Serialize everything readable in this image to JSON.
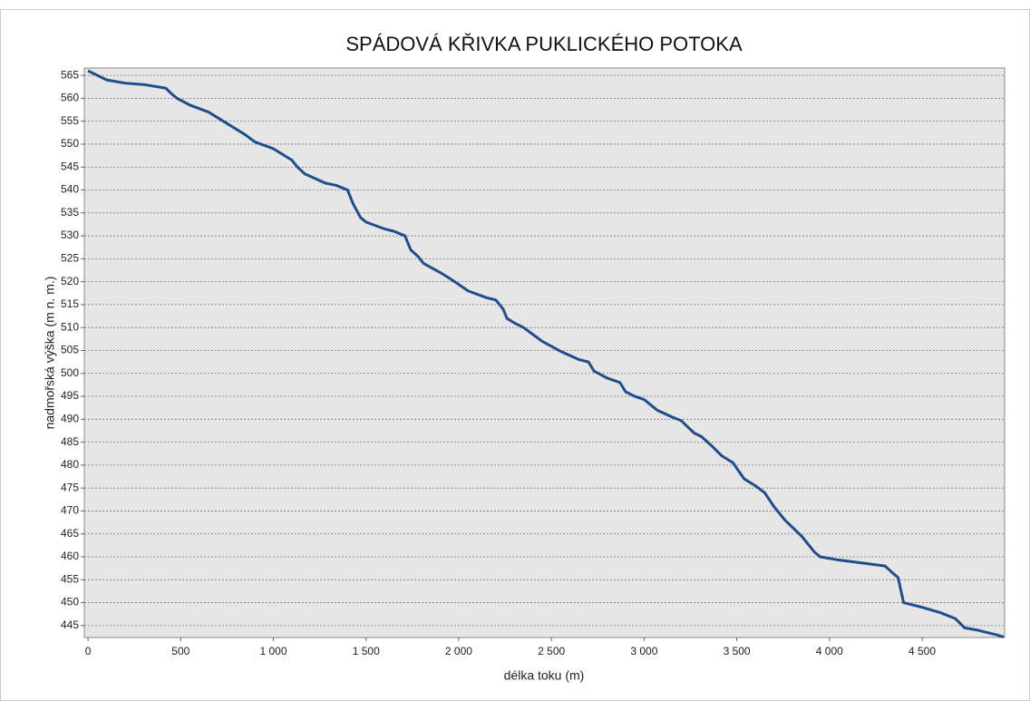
{
  "chart_data": {
    "type": "line",
    "title": "SPÁDOVÁ KŘIVKA PUKLICKÉHO POTOKA",
    "x_label": "délka toku (m)",
    "y_label": "nadmořská výška (m n. m.)",
    "xlim": [
      -20,
      4945
    ],
    "ylim": [
      442.4,
      566.6
    ],
    "xticks": [
      0,
      500,
      {
        "value": 1000,
        "label": "1 000"
      },
      {
        "value": 1500,
        "label": "1 500"
      },
      {
        "value": 2000,
        "label": "2 000"
      },
      {
        "value": 2500,
        "label": "2 500"
      },
      {
        "value": 3000,
        "label": "3 000"
      },
      {
        "value": 3500,
        "label": "3 500"
      },
      {
        "value": 4000,
        "label": "4 000"
      },
      {
        "value": 4500,
        "label": "4 500"
      }
    ],
    "yticks": [
      445,
      450,
      455,
      460,
      465,
      470,
      475,
      480,
      485,
      490,
      495,
      500,
      505,
      510,
      515,
      520,
      525,
      530,
      535,
      540,
      545,
      550,
      555,
      560,
      565
    ],
    "grid": true,
    "series": [
      {
        "color": "#1f4e8c",
        "x": [
          0,
          50,
          100,
          200,
          300,
          420,
          450,
          480,
          550,
          650,
          750,
          850,
          900,
          1000,
          1100,
          1130,
          1170,
          1280,
          1340,
          1400,
          1430,
          1470,
          1500,
          1600,
          1650,
          1710,
          1740,
          1780,
          1810,
          1900,
          1960,
          2050,
          2150,
          2200,
          2240,
          2260,
          2300,
          2350,
          2450,
          2550,
          2650,
          2700,
          2730,
          2800,
          2870,
          2900,
          2950,
          3000,
          3070,
          3150,
          3200,
          3270,
          3310,
          3370,
          3420,
          3480,
          3500,
          3540,
          3600,
          3650,
          3700,
          3760,
          3850,
          3920,
          3950,
          4050,
          4150,
          4300,
          4340,
          4370,
          4400,
          4500,
          4600,
          4680,
          4730,
          4800,
          4900,
          4940
        ],
        "values": [
          566,
          565,
          564,
          563.3,
          563,
          562.2,
          561,
          560,
          558.5,
          557,
          554.5,
          552,
          550.5,
          549,
          546.5,
          545,
          543.5,
          541.5,
          541,
          540,
          537,
          534,
          533,
          531.5,
          531,
          530,
          527,
          525.5,
          524,
          522,
          520.5,
          518,
          516.5,
          516,
          514,
          512,
          511,
          510,
          507,
          504.8,
          503,
          502.5,
          500.5,
          499,
          498,
          496,
          495,
          494.3,
          492,
          490.5,
          489.7,
          487,
          486.2,
          484,
          482,
          480.5,
          479.3,
          477,
          475.5,
          474,
          471,
          468,
          464.5,
          461,
          460,
          459.3,
          458.8,
          458,
          456.5,
          455.5,
          450,
          449,
          447.8,
          446.5,
          444.5,
          444,
          443,
          442.5
        ]
      }
    ]
  }
}
